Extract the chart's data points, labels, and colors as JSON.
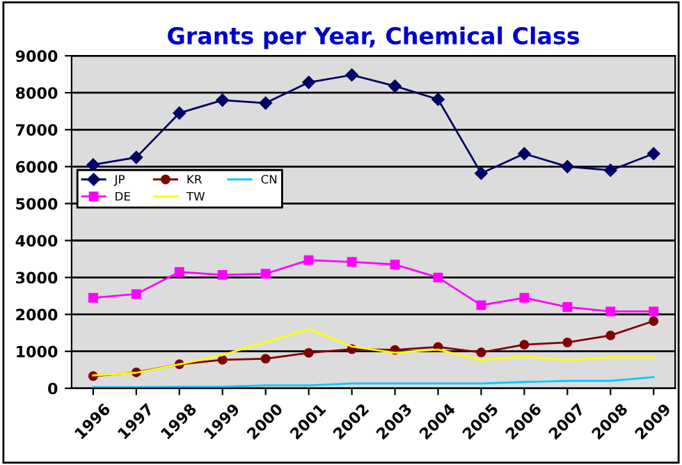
{
  "chart_data": {
    "type": "line",
    "title": "Grants per Year, Chemical Class",
    "categories": [
      "1996",
      "1997",
      "1998",
      "1999",
      "2000",
      "2001",
      "2002",
      "2003",
      "2004",
      "2005",
      "2006",
      "2007",
      "2008",
      "2009"
    ],
    "series": [
      {
        "name": "JP",
        "color": "#000066",
        "marker": "diamond",
        "values": [
          6050,
          6250,
          7450,
          7800,
          7720,
          8280,
          8480,
          8180,
          7820,
          5820,
          6350,
          6000,
          5900,
          6350
        ]
      },
      {
        "name": "DE",
        "color": "#ff00ff",
        "marker": "square",
        "values": [
          2450,
          2550,
          3150,
          3070,
          3100,
          3470,
          3420,
          3350,
          3000,
          2250,
          2450,
          2200,
          2080,
          2080
        ]
      },
      {
        "name": "KR",
        "color": "#800000",
        "marker": "circle",
        "values": [
          330,
          430,
          650,
          770,
          800,
          960,
          1060,
          1040,
          1120,
          970,
          1180,
          1240,
          1430,
          1820
        ]
      },
      {
        "name": "TW",
        "color": "#ffff00",
        "marker": "none",
        "values": [
          350,
          420,
          650,
          900,
          1250,
          1600,
          1130,
          960,
          1050,
          760,
          870,
          760,
          840,
          840
        ]
      },
      {
        "name": "CN",
        "color": "#00ccff",
        "marker": "none",
        "values": [
          30,
          30,
          40,
          40,
          80,
          80,
          130,
          130,
          130,
          130,
          170,
          200,
          200,
          300
        ]
      }
    ],
    "ylim": [
      0,
      9000
    ],
    "yticks": [
      0,
      1000,
      2000,
      3000,
      4000,
      5000,
      6000,
      7000,
      8000,
      9000
    ],
    "grid": "y",
    "legend": "center left"
  }
}
